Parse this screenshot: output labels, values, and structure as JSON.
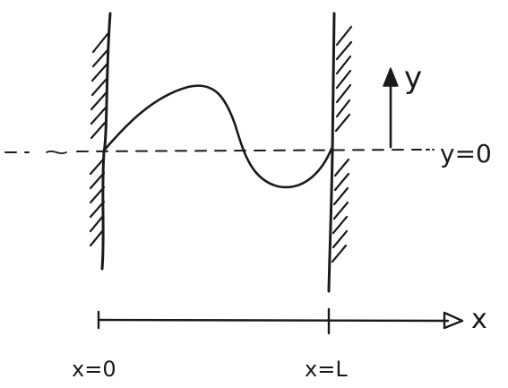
{
  "labels": {
    "y_axis": "y",
    "equilibrium": "y=0",
    "x_axis": "x",
    "left_end": "x=0",
    "right_end": "x=L"
  },
  "colors": {
    "ink": "#1a1a1a",
    "background": "#ffffff"
  }
}
